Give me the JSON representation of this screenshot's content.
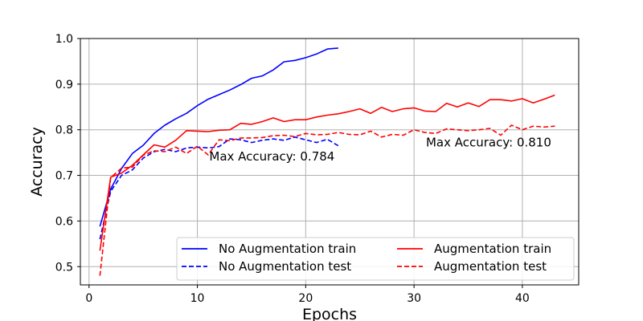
{
  "chart_data": {
    "type": "line",
    "title": "",
    "xlabel": "Epochs",
    "ylabel": "Accuracy",
    "xlim": [
      -0.8,
      45.2
    ],
    "ylim": [
      0.46,
      1.0
    ],
    "xticks": [
      0,
      10,
      20,
      30,
      40
    ],
    "yticks": [
      0.5,
      0.6,
      0.7,
      0.8,
      0.9,
      1.0
    ],
    "grid": true,
    "legend": {
      "placement": "lower-right",
      "columns": 2
    },
    "series": [
      {
        "name": "No Augmentation train",
        "color": "#0000ff",
        "style": "solid",
        "x": [
          1,
          2,
          3,
          4,
          5,
          6,
          7,
          8,
          9,
          10,
          11,
          12,
          13,
          14,
          15,
          16,
          17,
          18,
          19,
          20,
          21,
          22,
          23
        ],
        "y": [
          0.588,
          0.67,
          0.715,
          0.748,
          0.766,
          0.792,
          0.81,
          0.824,
          0.836,
          0.853,
          0.867,
          0.877,
          0.887,
          0.899,
          0.913,
          0.918,
          0.931,
          0.949,
          0.952,
          0.958,
          0.966,
          0.977,
          0.979
        ]
      },
      {
        "name": "No Augmentation test",
        "color": "#0000ff",
        "style": "dashed",
        "x": [
          1,
          2,
          3,
          4,
          5,
          6,
          7,
          8,
          9,
          10,
          11,
          12,
          13,
          14,
          15,
          16,
          17,
          18,
          19,
          20,
          21,
          22,
          23
        ],
        "y": [
          0.56,
          0.665,
          0.7,
          0.712,
          0.738,
          0.752,
          0.757,
          0.752,
          0.76,
          0.762,
          0.76,
          0.763,
          0.78,
          0.778,
          0.772,
          0.777,
          0.78,
          0.777,
          0.784,
          0.778,
          0.772,
          0.779,
          0.765
        ]
      },
      {
        "name": "Augmentation train",
        "color": "#ff0000",
        "style": "solid",
        "x": [
          1,
          2,
          3,
          4,
          5,
          6,
          7,
          8,
          9,
          10,
          11,
          12,
          13,
          14,
          15,
          16,
          17,
          18,
          19,
          20,
          21,
          22,
          23,
          24,
          25,
          26,
          27,
          28,
          29,
          30,
          31,
          32,
          33,
          34,
          35,
          36,
          37,
          38,
          39,
          40,
          41,
          42,
          43
        ],
        "y": [
          0.535,
          0.696,
          0.705,
          0.722,
          0.745,
          0.767,
          0.762,
          0.777,
          0.798,
          0.797,
          0.796,
          0.799,
          0.8,
          0.814,
          0.812,
          0.818,
          0.826,
          0.818,
          0.822,
          0.822,
          0.828,
          0.832,
          0.835,
          0.84,
          0.846,
          0.836,
          0.849,
          0.84,
          0.846,
          0.848,
          0.841,
          0.84,
          0.858,
          0.85,
          0.859,
          0.851,
          0.866,
          0.866,
          0.863,
          0.868,
          0.859,
          0.867,
          0.876
        ]
      },
      {
        "name": "Augmentation test",
        "color": "#ff0000",
        "style": "dashed",
        "x": [
          1,
          2,
          3,
          4,
          5,
          6,
          7,
          8,
          9,
          10,
          11,
          12,
          13,
          14,
          15,
          16,
          17,
          18,
          19,
          20,
          21,
          22,
          23,
          24,
          25,
          26,
          27,
          28,
          29,
          30,
          31,
          32,
          33,
          34,
          35,
          36,
          37,
          38,
          39,
          40,
          41,
          42,
          43
        ],
        "y": [
          0.48,
          0.695,
          0.716,
          0.718,
          0.744,
          0.754,
          0.752,
          0.762,
          0.748,
          0.764,
          0.745,
          0.778,
          0.776,
          0.782,
          0.782,
          0.783,
          0.787,
          0.788,
          0.785,
          0.792,
          0.789,
          0.79,
          0.794,
          0.79,
          0.789,
          0.797,
          0.784,
          0.79,
          0.788,
          0.8,
          0.794,
          0.792,
          0.802,
          0.8,
          0.798,
          0.8,
          0.803,
          0.788,
          0.81,
          0.8,
          0.808,
          0.806,
          0.808
        ]
      }
    ],
    "annotations": [
      {
        "text": "Max Accuracy: 0.784",
        "x": 11.1,
        "y": 0.733
      },
      {
        "text": "Max Accuracy: 0.810",
        "x": 31.1,
        "y": 0.763
      }
    ]
  }
}
